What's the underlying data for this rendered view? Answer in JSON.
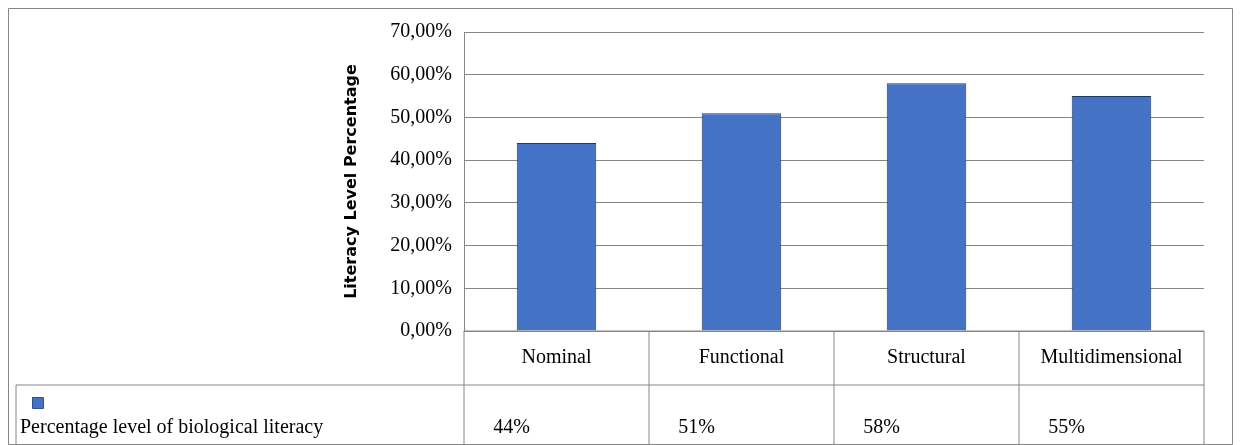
{
  "chart_data": {
    "type": "bar",
    "ylabel": "Literacy Level Percentage",
    "categories": [
      "Nominal",
      "Functional",
      "Structural",
      "Multidimensional"
    ],
    "series": [
      {
        "name": "Percentage level of biological literacy",
        "color": "#4472c4",
        "values": [
          44,
          51,
          58,
          55
        ],
        "value_labels": [
          "44%",
          "51%",
          "58%",
          "55%"
        ]
      }
    ],
    "ylim": [
      0,
      70
    ],
    "yticks": [
      {
        "value": 0,
        "label": "0,00%"
      },
      {
        "value": 10,
        "label": "10,00%"
      },
      {
        "value": 20,
        "label": "20,00%"
      },
      {
        "value": 30,
        "label": "30,00%"
      },
      {
        "value": 40,
        "label": "40,00%"
      },
      {
        "value": 50,
        "label": "50,00%"
      },
      {
        "value": 60,
        "label": "60,00%"
      },
      {
        "value": 70,
        "label": "70,00%"
      }
    ],
    "grid": "y"
  }
}
